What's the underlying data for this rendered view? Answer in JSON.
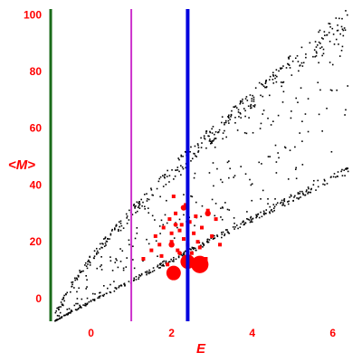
{
  "chart_data": {
    "type": "scatter",
    "xlabel": "E",
    "ylabel": "<M>",
    "xlim": [
      -1.0,
      6.5
    ],
    "ylim": [
      -8,
      102
    ],
    "x_ticks": [
      0,
      2,
      4,
      6
    ],
    "x_tick_labels": [
      "0",
      "2",
      "4",
      "6"
    ],
    "y_ticks": [
      0,
      20,
      40,
      60,
      80,
      100
    ],
    "y_tick_labels": [
      "0",
      "20",
      "40",
      "60",
      "80",
      "100"
    ],
    "grid": false,
    "colors": {
      "axes": "#1a6b1a",
      "text": "#ff0000",
      "points": "#000000",
      "highlight": "#ff0000",
      "line_magenta": "#cc33cc",
      "line_blue": "#0000dd"
    },
    "vertical_lines": [
      {
        "x": 1.0,
        "color": "#cc33cc"
      },
      {
        "x": 2.4,
        "color": "#0000dd"
      }
    ],
    "band": {
      "x_start": -0.9,
      "x_end": 6.4,
      "upper_start": -6,
      "upper_end": 103,
      "lower_start": -8,
      "lower_end": 44
    },
    "series": [
      {
        "marker": "dot",
        "points": []
      },
      {
        "marker": "square",
        "points": [
          [
            1.3,
            14
          ],
          [
            1.5,
            17
          ],
          [
            1.6,
            22
          ],
          [
            1.7,
            19
          ],
          [
            1.8,
            25
          ],
          [
            1.9,
            12
          ],
          [
            1.95,
            28
          ],
          [
            2.0,
            20
          ],
          [
            2.05,
            36
          ],
          [
            2.1,
            30
          ],
          [
            2.15,
            17
          ],
          [
            2.2,
            24
          ],
          [
            2.3,
            21
          ],
          [
            2.35,
            33
          ],
          [
            2.45,
            27
          ],
          [
            2.5,
            16
          ],
          [
            2.55,
            23
          ],
          [
            2.6,
            29
          ],
          [
            2.7,
            18
          ],
          [
            2.75,
            25
          ],
          [
            2.85,
            14
          ],
          [
            2.9,
            31
          ],
          [
            3.0,
            22
          ],
          [
            3.1,
            28
          ],
          [
            3.2,
            19
          ],
          [
            2.0,
            23
          ],
          [
            2.25,
            26
          ],
          [
            1.75,
            15
          ],
          [
            2.4,
            19
          ],
          [
            2.65,
            20
          ]
        ]
      },
      {
        "marker": "circle",
        "points": [
          [
            2.05,
            9,
            5
          ],
          [
            2.4,
            13,
            5
          ],
          [
            2.7,
            12,
            6
          ],
          [
            2.3,
            32,
            2
          ],
          [
            2.9,
            30,
            2
          ],
          [
            2.0,
            19,
            2
          ],
          [
            2.1,
            26,
            1.5
          ],
          [
            2.2,
            16,
            1.5
          ]
        ]
      }
    ]
  }
}
